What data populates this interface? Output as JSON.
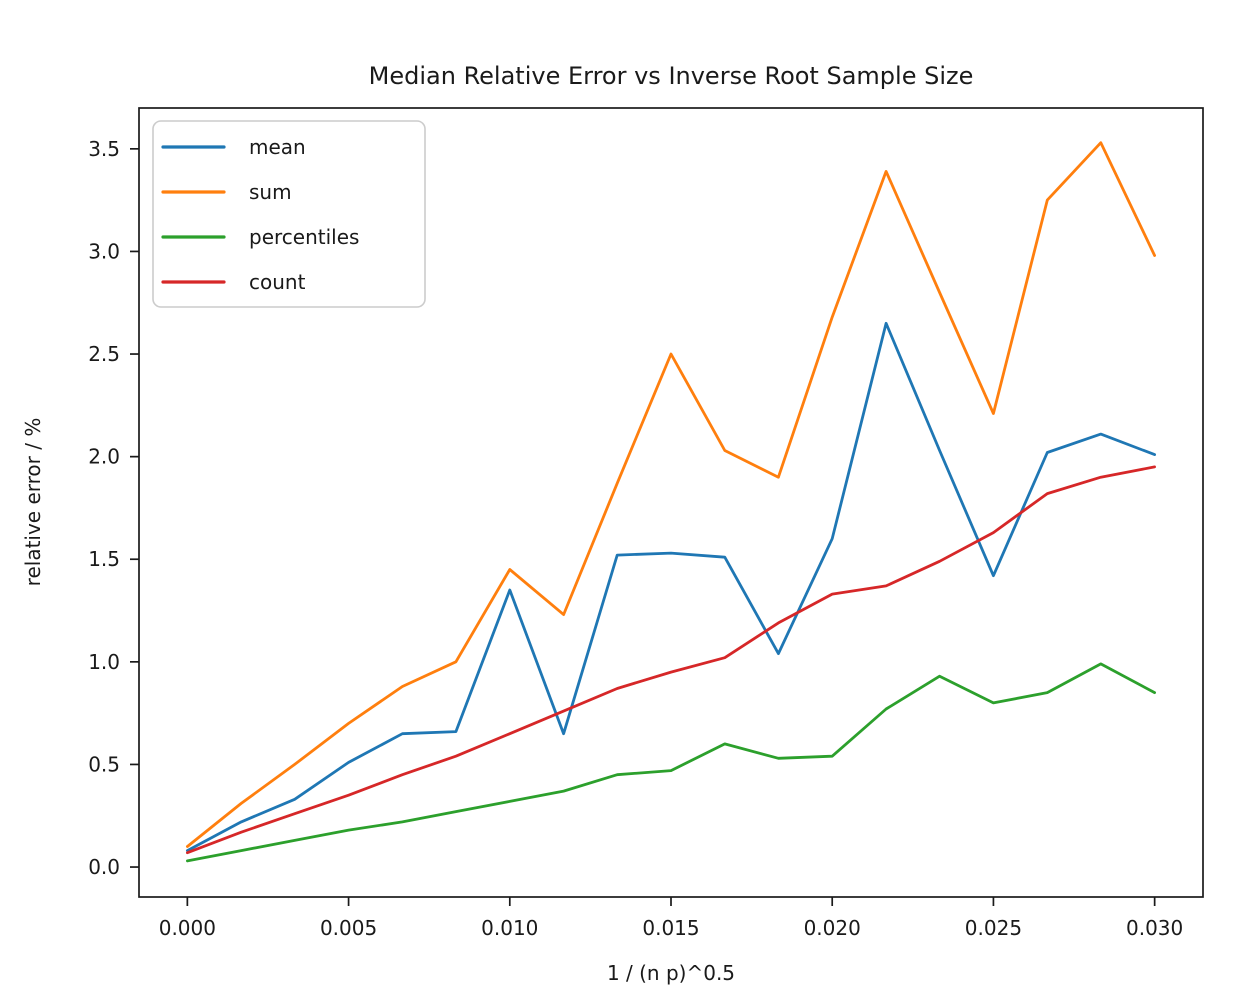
{
  "chart_data": {
    "type": "line",
    "title": "Median Relative Error vs Inverse Root Sample Size",
    "xlabel": "1 / (n p)^0.5",
    "ylabel": "relative error / %",
    "grid": false,
    "legend_position": "upper left",
    "xlim": [
      -0.0015,
      0.0315
    ],
    "ylim": [
      -0.146,
      3.699
    ],
    "x_ticks": [
      0.0,
      0.005,
      0.01,
      0.015,
      0.02,
      0.025,
      0.03
    ],
    "x_tick_labels": [
      "0.000",
      "0.005",
      "0.010",
      "0.015",
      "0.020",
      "0.025",
      "0.030"
    ],
    "y_ticks": [
      0.0,
      0.5,
      1.0,
      1.5,
      2.0,
      2.5,
      3.0,
      3.5
    ],
    "y_tick_labels": [
      "0.0",
      "0.5",
      "1.0",
      "1.5",
      "2.0",
      "2.5",
      "3.0",
      "3.5"
    ],
    "x": [
      0.0,
      0.00167,
      0.00333,
      0.005,
      0.00667,
      0.00833,
      0.01,
      0.01167,
      0.01333,
      0.015,
      0.01667,
      0.01833,
      0.02,
      0.02167,
      0.02333,
      0.025,
      0.02667,
      0.02833,
      0.03
    ],
    "series": [
      {
        "name": "mean",
        "color": "#1f77b4",
        "values": [
          0.08,
          0.22,
          0.33,
          0.51,
          0.65,
          0.66,
          1.35,
          0.65,
          1.52,
          1.53,
          1.51,
          1.04,
          1.6,
          2.65,
          2.03,
          1.42,
          2.02,
          2.11,
          2.01
        ]
      },
      {
        "name": "sum",
        "color": "#ff7f0e",
        "values": [
          0.1,
          0.31,
          0.5,
          0.7,
          0.88,
          1.0,
          1.45,
          1.23,
          1.87,
          2.5,
          2.03,
          1.9,
          2.68,
          3.39,
          2.8,
          2.21,
          3.25,
          3.53,
          2.98
        ]
      },
      {
        "name": "percentiles",
        "color": "#2ca02c",
        "values": [
          0.03,
          0.08,
          0.13,
          0.18,
          0.22,
          0.27,
          0.32,
          0.37,
          0.45,
          0.47,
          0.6,
          0.53,
          0.54,
          0.77,
          0.93,
          0.8,
          0.85,
          0.99,
          0.85
        ]
      },
      {
        "name": "count",
        "color": "#d62728",
        "values": [
          0.07,
          0.17,
          0.26,
          0.35,
          0.45,
          0.54,
          0.65,
          0.76,
          0.87,
          0.95,
          1.02,
          1.19,
          1.33,
          1.37,
          1.49,
          1.63,
          1.82,
          1.9,
          1.95
        ]
      }
    ]
  }
}
